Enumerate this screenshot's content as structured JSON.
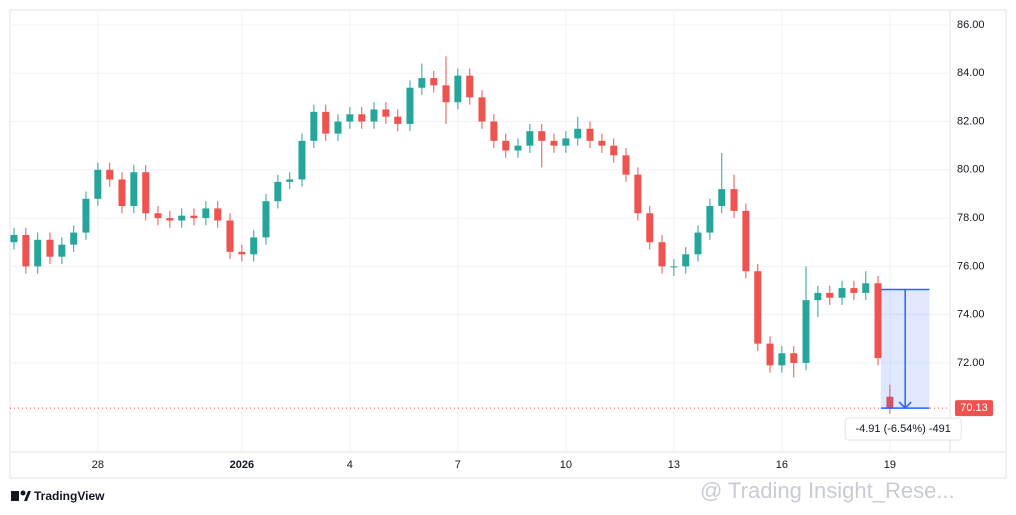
{
  "chart_data": {
    "type": "candlestick",
    "x": [
      -2.33,
      -2,
      -1.67,
      -1.33,
      -1,
      -0.67,
      -0.33,
      0,
      0.33,
      0.67,
      1,
      1.33,
      1.67,
      2,
      2.33,
      2.67,
      3,
      3.33,
      3.67,
      4,
      4.33,
      4.67,
      5,
      5.33,
      5.67,
      6,
      6.33,
      6.67,
      7,
      7.33,
      7.67,
      8,
      8.33,
      8.67,
      9,
      9.33,
      9.67,
      10,
      10.33,
      10.67,
      11,
      11.33,
      11.67,
      12,
      12.33,
      12.67,
      13,
      13.33,
      13.67,
      14,
      14.33,
      14.67,
      15,
      15.33,
      15.67,
      16,
      16.33,
      16.67,
      17,
      17.33,
      17.67,
      18,
      18.33,
      18.67,
      19,
      19.33,
      19.67,
      20,
      20.33,
      20.67,
      21,
      21.33,
      21.67,
      22
    ],
    "open": [
      77.0,
      77.3,
      76.0,
      77.1,
      76.4,
      76.9,
      77.4,
      78.8,
      80.0,
      79.6,
      78.5,
      79.9,
      78.2,
      78.0,
      77.9,
      78.1,
      78.0,
      78.4,
      77.9,
      76.6,
      76.5,
      77.2,
      78.7,
      79.5,
      79.6,
      81.2,
      82.4,
      81.5,
      82.0,
      82.3,
      82.0,
      82.5,
      82.2,
      81.9,
      83.4,
      83.8,
      83.5,
      82.8,
      83.9,
      83.0,
      82.0,
      81.2,
      80.8,
      81.0,
      81.6,
      81.2,
      81.0,
      81.3,
      81.7,
      81.2,
      81.0,
      80.6,
      79.8,
      78.2,
      77.0,
      76.0,
      76.0,
      76.5,
      77.4,
      78.5,
      79.2,
      78.3,
      75.8,
      72.8,
      71.9,
      72.4,
      72.0,
      74.6,
      74.9,
      74.7,
      75.1,
      74.9,
      75.3,
      70.6
    ],
    "high": [
      77.6,
      77.6,
      77.4,
      77.4,
      77.2,
      77.7,
      79.1,
      80.3,
      80.3,
      79.9,
      80.2,
      80.2,
      78.5,
      78.3,
      78.4,
      78.4,
      78.7,
      78.7,
      78.2,
      76.9,
      77.5,
      79.0,
      79.8,
      79.9,
      81.5,
      82.7,
      82.7,
      82.3,
      82.6,
      82.6,
      82.8,
      82.8,
      82.5,
      83.7,
      84.4,
      84.1,
      84.7,
      84.2,
      84.2,
      83.3,
      82.3,
      81.5,
      81.3,
      81.9,
      81.9,
      81.5,
      81.6,
      82.2,
      82.0,
      81.5,
      81.3,
      80.9,
      80.1,
      78.5,
      77.3,
      76.3,
      76.8,
      77.7,
      78.8,
      80.7,
      79.8,
      78.6,
      76.1,
      73.1,
      72.7,
      72.7,
      76.0,
      75.2,
      75.2,
      75.4,
      75.4,
      75.8,
      75.6,
      71.1
    ],
    "low": [
      76.7,
      75.7,
      75.7,
      76.1,
      76.1,
      76.6,
      77.1,
      78.5,
      79.3,
      78.2,
      78.2,
      77.9,
      77.7,
      77.6,
      77.6,
      77.7,
      77.7,
      77.6,
      76.3,
      76.2,
      76.2,
      76.9,
      78.4,
      79.2,
      79.3,
      80.9,
      81.2,
      81.2,
      81.7,
      81.7,
      81.7,
      81.9,
      81.6,
      81.6,
      83.1,
      83.2,
      81.9,
      82.5,
      82.7,
      81.7,
      80.9,
      80.5,
      80.5,
      80.7,
      80.1,
      80.7,
      80.7,
      81.0,
      80.9,
      80.7,
      80.3,
      79.5,
      77.9,
      76.7,
      75.7,
      75.6,
      75.7,
      76.2,
      77.1,
      78.2,
      78.0,
      75.5,
      72.5,
      71.6,
      71.6,
      71.4,
      71.7,
      73.9,
      74.4,
      74.4,
      74.6,
      74.6,
      71.9,
      69.9
    ],
    "close": [
      77.3,
      76.0,
      77.1,
      76.4,
      76.9,
      77.4,
      78.8,
      80.0,
      79.6,
      78.5,
      79.9,
      78.2,
      78.0,
      77.9,
      78.1,
      78.0,
      78.4,
      77.9,
      76.6,
      76.5,
      77.2,
      78.7,
      79.5,
      79.6,
      81.2,
      82.4,
      81.5,
      82.0,
      82.3,
      82.0,
      82.5,
      82.2,
      81.9,
      83.4,
      83.8,
      83.5,
      82.8,
      83.9,
      83.0,
      82.0,
      81.2,
      80.8,
      81.0,
      81.6,
      81.2,
      81.0,
      81.3,
      81.7,
      81.2,
      81.0,
      80.6,
      79.8,
      78.2,
      77.0,
      76.0,
      76.0,
      76.5,
      77.4,
      78.5,
      79.2,
      78.3,
      75.8,
      72.8,
      71.9,
      72.4,
      72.0,
      74.6,
      74.9,
      74.7,
      75.1,
      74.9,
      75.3,
      72.2,
      70.13
    ],
    "up_color": "#26a69a",
    "down_color": "#ef5350",
    "xlim": [
      -2.44,
      23.67
    ],
    "xticks": [
      {
        "value": 0,
        "label": "28"
      },
      {
        "value": 4,
        "label": "2026"
      },
      {
        "value": 7,
        "label": "4"
      },
      {
        "value": 10,
        "label": "7"
      },
      {
        "value": 13,
        "label": "10"
      },
      {
        "value": 16,
        "label": "13"
      },
      {
        "value": 19,
        "label": "16"
      },
      {
        "value": 22,
        "label": "19"
      }
    ],
    "ylim": [
      68.31,
      86.62
    ],
    "yticks": [
      {
        "value": 72,
        "label": "72.00"
      },
      {
        "value": 74,
        "label": "74.00"
      },
      {
        "value": 76,
        "label": "76.00"
      },
      {
        "value": 78,
        "label": "78.00"
      },
      {
        "value": 80,
        "label": "80.00"
      },
      {
        "value": 82,
        "label": "82.00"
      },
      {
        "value": 84,
        "label": "84.00"
      },
      {
        "value": 86,
        "label": "86.00"
      }
    ],
    "grid": true,
    "last_price": {
      "value": 70.13,
      "label": "70.13"
    },
    "measure": {
      "x": [
        21.75,
        23.1
      ],
      "from": 75.04,
      "to": 70.13,
      "label": "-4.91 (-6.54%) -491"
    },
    "brand": "TradingView",
    "watermark": "@ Trading Insight_Rese..."
  }
}
